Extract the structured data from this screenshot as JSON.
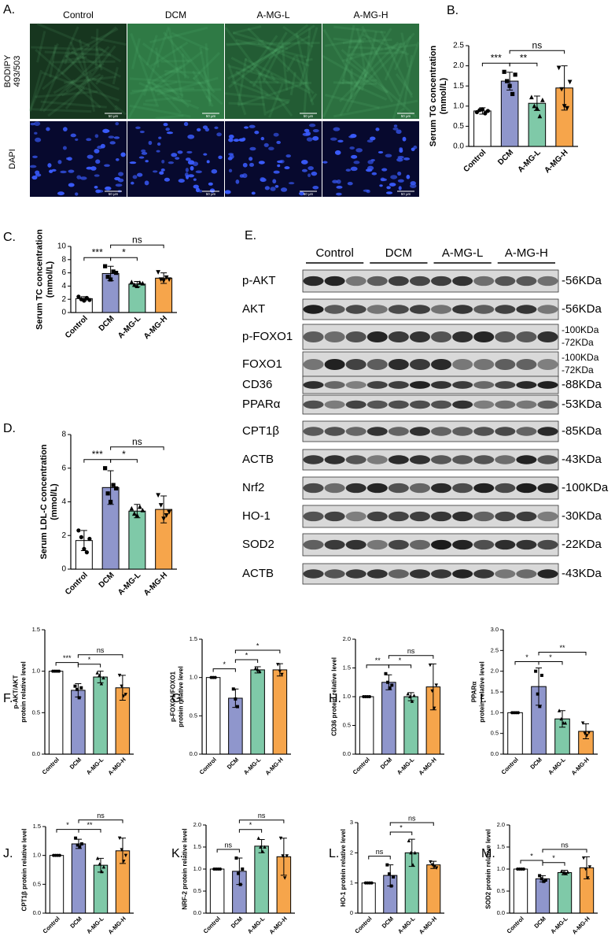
{
  "image_panel": {
    "letter": "A.",
    "columns": [
      "Control",
      "DCM",
      "A-MG-L",
      "A-MG-H"
    ],
    "rows": [
      {
        "lines": [
          "BODIPY",
          "493/503"
        ]
      },
      {
        "lines": [
          "DAPI"
        ]
      }
    ],
    "scale_bar": "50 μm"
  },
  "blot_panel": {
    "letter": "E.",
    "groups": [
      "Control",
      "DCM",
      "A-MG-L",
      "A-MG-H"
    ],
    "rows": [
      {
        "label": "p-AKT",
        "mw": [
          "-56KDa"
        ]
      },
      {
        "label": "AKT",
        "mw": [
          "-56KDa"
        ]
      },
      {
        "label": "p-FOXO1",
        "mw": [
          "-100KDa",
          "-72KDa"
        ]
      },
      {
        "label": "FOXO1",
        "mw": [
          "-100KDa",
          "-72KDa"
        ]
      },
      {
        "label": "CD36",
        "mw": [
          "-88KDa"
        ]
      },
      {
        "label": "PPARα",
        "mw": [
          "-53KDa"
        ]
      },
      {
        "label": "CPT1β",
        "mw": [
          "-85KDa"
        ]
      },
      {
        "label": "ACTB",
        "mw": [
          "-43KDa"
        ]
      },
      {
        "label": "Nrf2",
        "mw": [
          "-100KDa"
        ]
      },
      {
        "label": "HO-1",
        "mw": [
          "-30KDa"
        ]
      },
      {
        "label": "SOD2",
        "mw": [
          "-22KDa"
        ]
      },
      {
        "label": "ACTB",
        "mw": [
          "-43KDa"
        ]
      }
    ]
  },
  "chart_data": [
    {
      "type": "bar",
      "panel": "B.",
      "ylabel": [
        "Serum TG concentration",
        "(mmol/L)"
      ],
      "categories": [
        "Control",
        "DCM",
        "A-MG-L",
        "A-MG-H"
      ],
      "colors": [
        "#ffffff",
        "#8f96cc",
        "#7fc9a8",
        "#f6a54b"
      ],
      "values": [
        0.88,
        1.62,
        1.07,
        1.45
      ],
      "errors": [
        0.08,
        0.22,
        0.18,
        0.55
      ],
      "points": [
        [
          0.85,
          0.9,
          0.92,
          0.82,
          0.88
        ],
        [
          1.85,
          1.62,
          1.5,
          1.3,
          1.78
        ],
        [
          1.22,
          1.0,
          0.95,
          0.75,
          1.15
        ],
        [
          1.95,
          1.42,
          1.0,
          0.95,
          1.6
        ]
      ],
      "ylim": [
        0,
        2.5
      ],
      "yticks": [
        {
          "value": 0,
          "label": "0.0"
        },
        0.5,
        {
          "value": 1,
          "label": "1.0"
        },
        1.5,
        {
          "value": 2,
          "label": "2.0"
        },
        2.5
      ],
      "brackets": [
        {
          "pair": [
            0,
            1
          ],
          "label": "***"
        },
        {
          "pair": [
            1,
            2
          ],
          "label": "**"
        },
        {
          "pair": [
            1,
            3
          ],
          "label": "ns"
        }
      ]
    },
    {
      "type": "bar",
      "panel": "C.",
      "ylabel": [
        "Serum TC concentration",
        "(mmol/L)"
      ],
      "categories": [
        "Control",
        "DCM",
        "A-MG-L",
        "A-MG-H"
      ],
      "colors": [
        "#ffffff",
        "#8f96cc",
        "#7fc9a8",
        "#f6a54b"
      ],
      "values": [
        2.1,
        5.9,
        4.3,
        5.2
      ],
      "errors": [
        0.3,
        1.1,
        0.4,
        0.8
      ],
      "points": [
        [
          2.4,
          2.0,
          1.8,
          2.2,
          1.9
        ],
        [
          7.0,
          5.4,
          5.0,
          6.2,
          6.0
        ],
        [
          4.6,
          4.2,
          4.0,
          4.5,
          4.4
        ],
        [
          6.1,
          5.0,
          4.8,
          5.3,
          5.0
        ]
      ],
      "ylim": [
        0,
        10
      ],
      "yticks": [
        0,
        2,
        4,
        6,
        8,
        10
      ],
      "brackets": [
        {
          "pair": [
            0,
            1
          ],
          "label": "***"
        },
        {
          "pair": [
            1,
            2
          ],
          "label": "*"
        },
        {
          "pair": [
            1,
            3
          ],
          "label": "ns"
        }
      ]
    },
    {
      "type": "bar",
      "panel": "D.",
      "ylabel": [
        "Serum LDL-C concentration",
        "(mmol/L)"
      ],
      "categories": [
        "Control",
        "DCM",
        "A-MG-L",
        "A-MG-H"
      ],
      "colors": [
        "#ffffff",
        "#8f96cc",
        "#7fc9a8",
        "#f6a54b"
      ],
      "values": [
        1.7,
        4.85,
        3.45,
        3.55
      ],
      "errors": [
        0.6,
        1.0,
        0.4,
        0.8
      ],
      "points": [
        [
          2.3,
          1.9,
          1.2,
          1.0,
          1.8
        ],
        [
          6.0,
          4.5,
          4.0,
          5.0,
          4.8
        ],
        [
          3.6,
          3.3,
          3.2,
          3.7,
          3.5
        ],
        [
          4.4,
          3.8,
          3.0,
          3.2,
          3.4
        ]
      ],
      "ylim": [
        0,
        8
      ],
      "yticks": [
        0,
        2,
        4,
        6,
        8
      ],
      "brackets": [
        {
          "pair": [
            0,
            1
          ],
          "label": "***"
        },
        {
          "pair": [
            1,
            2
          ],
          "label": "*"
        },
        {
          "pair": [
            1,
            3
          ],
          "label": "ns"
        }
      ]
    },
    {
      "type": "bar",
      "panel": "F.",
      "ylabel": [
        "p-AKT/AKT",
        "protein relative level"
      ],
      "categories": [
        "Control",
        "DCM",
        "A-MG-L",
        "A-MG-H"
      ],
      "colors": [
        "#ffffff",
        "#8f96cc",
        "#7fc9a8",
        "#f6a54b"
      ],
      "values": [
        1.0,
        0.77,
        0.93,
        0.8
      ],
      "errors": [
        0,
        0.08,
        0.07,
        0.15
      ],
      "points": [
        [
          1,
          1,
          1,
          1
        ],
        [
          0.82,
          0.78,
          0.68,
          0.8
        ],
        [
          0.98,
          0.95,
          0.85,
          0.92
        ],
        [
          0.95,
          0.82,
          0.7,
          0.72
        ]
      ],
      "ylim": [
        0,
        1.5
      ],
      "yticks": [
        {
          "value": 0,
          "label": "0.0"
        },
        0.5,
        {
          "value": 1,
          "label": "1.0"
        },
        1.5
      ],
      "brackets": [
        {
          "pair": [
            0,
            1
          ],
          "label": "***"
        },
        {
          "pair": [
            1,
            2
          ],
          "label": "*"
        },
        {
          "pair": [
            1,
            3
          ],
          "label": "ns"
        }
      ]
    },
    {
      "type": "bar",
      "panel": "G.",
      "ylabel": [
        "p-FOXO1/FOXO1",
        "protein relative level"
      ],
      "categories": [
        "Control",
        "DCM",
        "A-MG-L",
        "A-MG-H"
      ],
      "colors": [
        "#ffffff",
        "#8f96cc",
        "#7fc9a8",
        "#f6a54b"
      ],
      "values": [
        1.0,
        0.73,
        1.1,
        1.1
      ],
      "errors": [
        0,
        0.12,
        0.04,
        0.08
      ],
      "points": [
        [
          1,
          1,
          1
        ],
        [
          0.85,
          0.72,
          0.62
        ],
        [
          1.12,
          1.1,
          1.08
        ],
        [
          1.17,
          1.08,
          1.04
        ]
      ],
      "ylim": [
        0,
        1.5
      ],
      "yticks": [
        {
          "value": 0,
          "label": "0.0"
        },
        0.5,
        {
          "value": 1,
          "label": "1.0"
        },
        1.5
      ],
      "brackets": [
        {
          "pair": [
            0,
            1
          ],
          "label": "*"
        },
        {
          "pair": [
            1,
            2
          ],
          "label": "*"
        },
        {
          "pair": [
            1,
            3
          ],
          "label": "*"
        }
      ]
    },
    {
      "type": "bar",
      "panel": "H.",
      "ylabel": [
        "CD36 protein relative level"
      ],
      "categories": [
        "Control",
        "DCM",
        "A-MG-L",
        "A-MG-H"
      ],
      "colors": [
        "#ffffff",
        "#8f96cc",
        "#7fc9a8",
        "#f6a54b"
      ],
      "values": [
        1.0,
        1.25,
        1.0,
        1.17
      ],
      "errors": [
        0,
        0.13,
        0.07,
        0.4
      ],
      "points": [
        [
          1,
          1,
          1,
          1
        ],
        [
          1.4,
          1.25,
          1.15,
          1.2
        ],
        [
          1.05,
          1.0,
          0.92,
          1.02
        ],
        [
          1.55,
          1.1,
          0.8,
          1.2
        ]
      ],
      "ylim": [
        0,
        2
      ],
      "yticks": [
        {
          "value": 0,
          "label": "0.0"
        },
        0.5,
        {
          "value": 1,
          "label": "1.0"
        },
        1.5,
        {
          "value": 2,
          "label": "2.0"
        }
      ],
      "brackets": [
        {
          "pair": [
            0,
            1
          ],
          "label": "**"
        },
        {
          "pair": [
            1,
            2
          ],
          "label": "*"
        },
        {
          "pair": [
            1,
            3
          ],
          "label": "ns"
        }
      ]
    },
    {
      "type": "bar",
      "panel": "I.",
      "ylabel": [
        "PPARα",
        "protein relative level"
      ],
      "categories": [
        "Control",
        "DCM",
        "A-MG-L",
        "A-MG-H"
      ],
      "colors": [
        "#ffffff",
        "#8f96cc",
        "#7fc9a8",
        "#f6a54b"
      ],
      "values": [
        1.0,
        1.63,
        0.85,
        0.55
      ],
      "errors": [
        0,
        0.45,
        0.2,
        0.18
      ],
      "points": [
        [
          1,
          1,
          1,
          1
        ],
        [
          2.0,
          1.45,
          1.15,
          1.9
        ],
        [
          1.05,
          0.85,
          0.75,
          0.75
        ],
        [
          0.75,
          0.5,
          0.45,
          0.52
        ]
      ],
      "ylim": [
        0,
        3
      ],
      "yticks": [
        {
          "value": 0,
          "label": "0.0"
        },
        0.5,
        {
          "value": 1,
          "label": "1.0"
        },
        1.5,
        {
          "value": 2,
          "label": "2.0"
        },
        2.5,
        {
          "value": 3,
          "label": "3.0"
        }
      ],
      "brackets": [
        {
          "pair": [
            0,
            1
          ],
          "label": "*"
        },
        {
          "pair": [
            1,
            2
          ],
          "label": "*"
        },
        {
          "pair": [
            1,
            3
          ],
          "label": "**"
        }
      ]
    },
    {
      "type": "bar",
      "panel": "J.",
      "ylabel": [
        "CPT1β protein relative level"
      ],
      "categories": [
        "Control",
        "DCM",
        "A-MG-L",
        "A-MG-H"
      ],
      "colors": [
        "#ffffff",
        "#8f96cc",
        "#7fc9a8",
        "#f6a54b"
      ],
      "values": [
        1.0,
        1.2,
        0.83,
        1.08
      ],
      "errors": [
        0,
        0.08,
        0.12,
        0.22
      ],
      "points": [
        [
          1,
          1,
          1,
          1
        ],
        [
          1.3,
          1.18,
          1.15,
          1.2
        ],
        [
          0.95,
          0.85,
          0.72,
          0.8
        ],
        [
          1.3,
          1.1,
          0.9,
          1.0
        ]
      ],
      "ylim": [
        0,
        1.5
      ],
      "yticks": [
        {
          "value": 0,
          "label": "0.0"
        },
        0.5,
        {
          "value": 1,
          "label": "1.0"
        },
        1.5
      ],
      "brackets": [
        {
          "pair": [
            0,
            1
          ],
          "label": "*"
        },
        {
          "pair": [
            1,
            2
          ],
          "label": "**"
        },
        {
          "pair": [
            1,
            3
          ],
          "label": "ns"
        }
      ]
    },
    {
      "type": "bar",
      "panel": "K.",
      "ylabel": [
        "NRF-2 protein relative level"
      ],
      "categories": [
        "Control",
        "DCM",
        "A-MG-L",
        "A-MG-H"
      ],
      "colors": [
        "#ffffff",
        "#8f96cc",
        "#7fc9a8",
        "#f6a54b"
      ],
      "values": [
        1.0,
        0.95,
        1.52,
        1.28
      ],
      "errors": [
        0,
        0.3,
        0.15,
        0.42
      ],
      "points": [
        [
          1,
          1,
          1,
          1
        ],
        [
          1.25,
          0.9,
          0.65,
          1.0
        ],
        [
          1.7,
          1.5,
          1.4,
          1.5
        ],
        [
          1.7,
          1.3,
          0.8,
          1.3
        ]
      ],
      "ylim": [
        0,
        2
      ],
      "yticks": [
        {
          "value": 0,
          "label": "0.0"
        },
        0.5,
        {
          "value": 1,
          "label": "1.0"
        },
        1.5,
        {
          "value": 2,
          "label": "2.0"
        }
      ],
      "brackets": [
        {
          "pair": [
            0,
            1
          ],
          "label": "ns"
        },
        {
          "pair": [
            1,
            2
          ],
          "label": "*"
        },
        {
          "pair": [
            1,
            3
          ],
          "label": "ns"
        }
      ]
    },
    {
      "type": "bar",
      "panel": "L.",
      "ylabel": [
        "HO-1 protein relative level"
      ],
      "categories": [
        "Control",
        "DCM",
        "A-MG-L",
        "A-MG-H"
      ],
      "colors": [
        "#ffffff",
        "#8f96cc",
        "#7fc9a8",
        "#f6a54b"
      ],
      "values": [
        1.0,
        1.25,
        2.0,
        1.6
      ],
      "errors": [
        0,
        0.35,
        0.45,
        0.12
      ],
      "points": [
        [
          1,
          1,
          1,
          1
        ],
        [
          1.6,
          1.3,
          0.9,
          1.2
        ],
        [
          2.4,
          2.0,
          1.6,
          2.0
        ],
        [
          1.7,
          1.6,
          1.55,
          1.5
        ]
      ],
      "ylim": [
        0,
        3
      ],
      "yticks": [
        0,
        1,
        2,
        3
      ],
      "brackets": [
        {
          "pair": [
            0,
            1
          ],
          "label": "ns"
        },
        {
          "pair": [
            1,
            2
          ],
          "label": "*"
        },
        {
          "pair": [
            1,
            3
          ],
          "label": "ns"
        }
      ]
    },
    {
      "type": "bar",
      "panel": "M.",
      "ylabel": [
        "SOD2 protein relative level"
      ],
      "categories": [
        "Control",
        "DCM",
        "A-MG-L",
        "A-MG-H"
      ],
      "colors": [
        "#ffffff",
        "#8f96cc",
        "#7fc9a8",
        "#f6a54b"
      ],
      "values": [
        1.0,
        0.78,
        0.92,
        1.03
      ],
      "errors": [
        0,
        0.07,
        0.05,
        0.25
      ],
      "points": [
        [
          1,
          1,
          1,
          1
        ],
        [
          0.85,
          0.78,
          0.72,
          0.75
        ],
        [
          0.95,
          0.92,
          0.9,
          0.93
        ],
        [
          1.25,
          1.0,
          0.8,
          1.05
        ]
      ],
      "ylim": [
        0,
        2
      ],
      "yticks": [
        {
          "value": 0,
          "label": "0.0"
        },
        0.5,
        {
          "value": 1,
          "label": "1.0"
        },
        1.5,
        {
          "value": 2,
          "label": "2.0"
        }
      ],
      "brackets": [
        {
          "pair": [
            0,
            1
          ],
          "label": "*"
        },
        {
          "pair": [
            1,
            2
          ],
          "label": "*"
        },
        {
          "pair": [
            1,
            3
          ],
          "label": "ns"
        }
      ]
    }
  ]
}
